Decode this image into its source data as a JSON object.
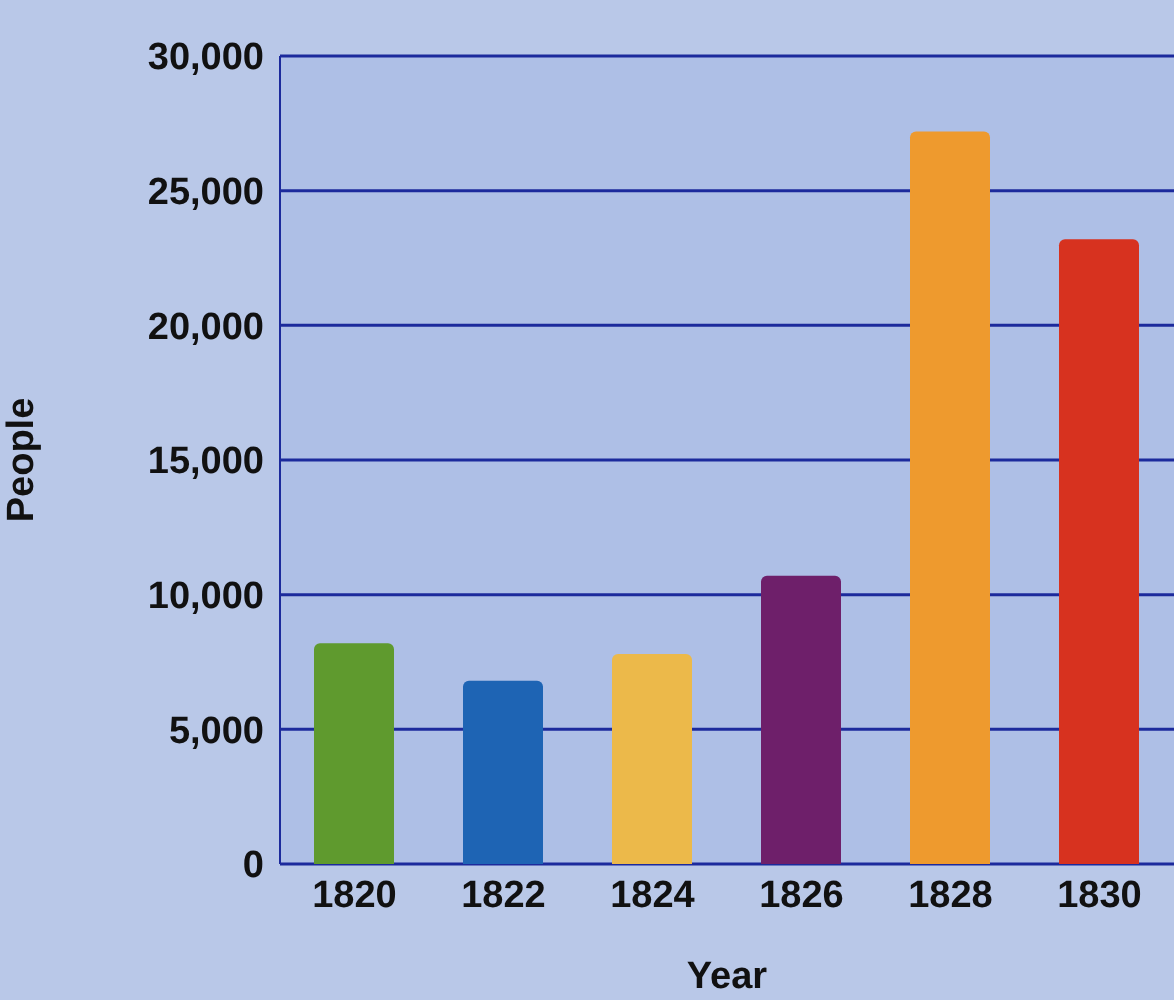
{
  "chart_data": {
    "type": "bar",
    "xlabel": "Year",
    "ylabel": "People",
    "categories": [
      "1820",
      "1822",
      "1824",
      "1826",
      "1828",
      "1830"
    ],
    "values": [
      8200,
      6800,
      7800,
      10700,
      27200,
      23200
    ],
    "colors": [
      "#5f9a2e",
      "#1e64b4",
      "#ecb94a",
      "#6e1f6a",
      "#ee9a2e",
      "#d7321f"
    ],
    "ylim": [
      0,
      30000
    ],
    "yticks": [
      0,
      {
        "value": 5000,
        "label": "5,000"
      },
      {
        "value": 10000,
        "label": "10,000"
      },
      {
        "value": 15000,
        "label": "15,000"
      },
      {
        "value": 20000,
        "label": "20,000"
      },
      {
        "value": 25000,
        "label": "25,000"
      },
      {
        "value": 30000,
        "label": "30,000"
      }
    ],
    "grid": "y"
  }
}
